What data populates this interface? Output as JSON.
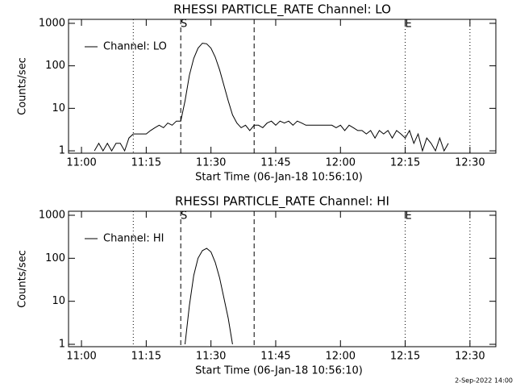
{
  "chart_data": [
    {
      "type": "line",
      "title": "RHESSI PARTICLE_RATE Channel: LO",
      "xlabel": "Start Time (06-Jan-18 10:56:10)",
      "ylabel": "Counts/sec",
      "log_y": true,
      "xlim": [
        "10:57",
        "12:36"
      ],
      "xticks": [
        "11:00",
        "11:15",
        "11:30",
        "11:45",
        "12:00",
        "12:15",
        "12:30"
      ],
      "ylim": [
        0.88,
        1240
      ],
      "yticks": [
        1,
        10,
        100,
        1000
      ],
      "legend": "upper left",
      "markers": [
        {
          "x": "11:12",
          "style": "dotted"
        },
        {
          "x": "11:23",
          "style": "dashed",
          "label": "S"
        },
        {
          "x": "11:40",
          "style": "dashed"
        },
        {
          "x": "12:15",
          "style": "dotted",
          "label": "E"
        },
        {
          "x": "12:30",
          "style": "dotted"
        }
      ],
      "series": [
        {
          "name": "Channel: LO",
          "color": "#000000",
          "x": [
            "11:03",
            "11:04",
            "11:05",
            "11:06",
            "11:07",
            "11:08",
            "11:09",
            "11:10",
            "11:11",
            "11:12",
            "11:13",
            "11:14",
            "11:15",
            "11:16",
            "11:17",
            "11:18",
            "11:19",
            "11:20",
            "11:21",
            "11:22",
            "11:23",
            "11:24",
            "11:25",
            "11:26",
            "11:27",
            "11:28",
            "11:29",
            "11:30",
            "11:31",
            "11:32",
            "11:33",
            "11:34",
            "11:35",
            "11:36",
            "11:37",
            "11:38",
            "11:39",
            "11:40",
            "11:41",
            "11:42",
            "11:43",
            "11:44",
            "11:45",
            "11:46",
            "11:47",
            "11:48",
            "11:49",
            "11:50",
            "11:51",
            "11:52",
            "11:53",
            "11:54",
            "11:55",
            "11:56",
            "11:57",
            "11:58",
            "11:59",
            "12:00",
            "12:01",
            "12:02",
            "12:03",
            "12:04",
            "12:05",
            "12:06",
            "12:07",
            "12:08",
            "12:09",
            "12:10",
            "12:11",
            "12:12",
            "12:13",
            "12:14",
            "12:15",
            "12:16",
            "12:17",
            "12:18",
            "12:19",
            "12:20",
            "12:21",
            "12:22",
            "12:23",
            "12:24",
            "12:25"
          ],
          "values": [
            1,
            1.5,
            1,
            1.5,
            1,
            1.5,
            1.5,
            1,
            2,
            2.5,
            2.5,
            2.5,
            2.5,
            3,
            3.5,
            4,
            3.5,
            4.5,
            4,
            5,
            5,
            15,
            60,
            150,
            260,
            340,
            330,
            260,
            160,
            80,
            35,
            15,
            7,
            4.5,
            3.5,
            4,
            3,
            4,
            4,
            3.5,
            4.5,
            5,
            4,
            5,
            4.5,
            5,
            4,
            5,
            4.5,
            4,
            4,
            4,
            4,
            4,
            4,
            4,
            3.5,
            4,
            3,
            4,
            3.5,
            3,
            3,
            2.5,
            3,
            2,
            3,
            2.5,
            3,
            2,
            3,
            2.5,
            2,
            3,
            1.5,
            2.5,
            1,
            2,
            1.5,
            1,
            2,
            1,
            1.5
          ]
        }
      ]
    },
    {
      "type": "line",
      "title": "RHESSI PARTICLE_RATE Channel: HI",
      "xlabel": "Start Time (06-Jan-18 10:56:10)",
      "ylabel": "Counts/sec",
      "log_y": true,
      "xlim": [
        "10:57",
        "12:36"
      ],
      "xticks": [
        "11:00",
        "11:15",
        "11:30",
        "11:45",
        "12:00",
        "12:15",
        "12:30"
      ],
      "ylim": [
        0.88,
        1240
      ],
      "yticks": [
        1,
        10,
        100,
        1000
      ],
      "legend": "upper left",
      "markers": [
        {
          "x": "11:12",
          "style": "dotted"
        },
        {
          "x": "11:23",
          "style": "dashed",
          "label": "S"
        },
        {
          "x": "11:40",
          "style": "dashed"
        },
        {
          "x": "12:15",
          "style": "dotted",
          "label": "E"
        },
        {
          "x": "12:30",
          "style": "dotted"
        }
      ],
      "series": [
        {
          "name": "Channel: HI",
          "color": "#000000",
          "x": [
            "11:24",
            "11:25",
            "11:26",
            "11:27",
            "11:28",
            "11:29",
            "11:30",
            "11:31",
            "11:32",
            "11:33",
            "11:34",
            "11:35"
          ],
          "values": [
            1,
            8,
            40,
            100,
            150,
            170,
            140,
            80,
            35,
            12,
            4,
            1
          ]
        }
      ]
    }
  ],
  "footer": "2-Sep-2022 14:00"
}
